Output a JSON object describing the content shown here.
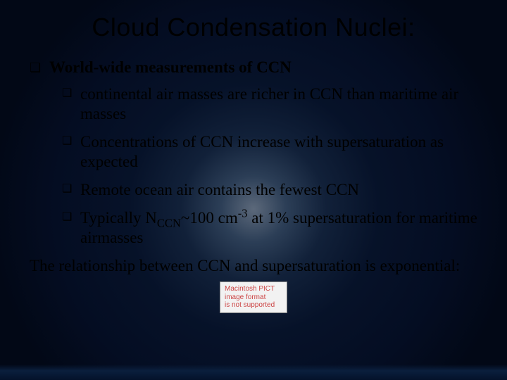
{
  "colors": {
    "text": "#000000",
    "title": "#000000",
    "placeholder_border": "#888888",
    "placeholder_bg": "#f2f2f2",
    "placeholder_text": "#cc4444",
    "bg_center": "rgba(200,220,240,0.45)",
    "bg_outer": "#020816"
  },
  "typography": {
    "title_font": "Verdana",
    "title_size_pt": 27,
    "body_font": "Times New Roman",
    "body_size_pt": 17,
    "bullet_glyph": "❏"
  },
  "title": "Cloud Condensation Nuclei:",
  "level1_label": "World-wide measurements of CCN",
  "bullets": [
    {
      "text": "continental air masses are richer in CCN than maritime air masses"
    },
    {
      "text": "Concentrations of CCN increase with supersaturation as expected"
    },
    {
      "text": "Remote ocean air contains the fewest CCN"
    },
    {
      "prefix": "Typically N",
      "sub": "CCN",
      "mid": "~100 cm",
      "sup": "-3",
      "suffix": " at 1% supersaturation for maritime airmasses"
    }
  ],
  "closing": "The relationship between CCN and supersaturation is exponential:",
  "placeholder_lines": [
    "Macintosh PICT",
    "image format",
    "is not supported"
  ]
}
